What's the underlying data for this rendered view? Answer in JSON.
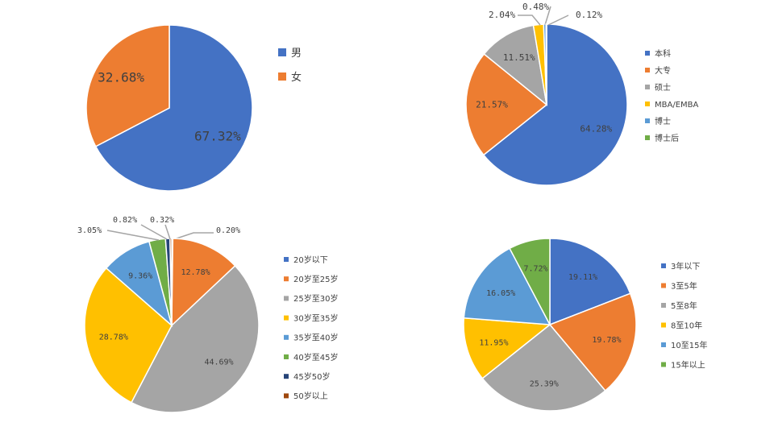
{
  "palette": [
    "#4472C4",
    "#ED7D31",
    "#A5A5A5",
    "#FFC000",
    "#5B9BD5",
    "#70AD47",
    "#264478",
    "#9E480E"
  ],
  "chart_data": [
    {
      "type": "pie",
      "title": "",
      "categories": [
        "男",
        "女"
      ],
      "values": [
        67.32,
        32.68
      ],
      "labels": [
        "67.32%",
        "32.68%"
      ],
      "legend": "right"
    },
    {
      "type": "pie",
      "title": "",
      "categories": [
        "本科",
        "大专",
        "硕士",
        "MBA/EMBA",
        "博士",
        "博士后"
      ],
      "values": [
        64.28,
        21.57,
        11.51,
        2.04,
        0.48,
        0.12
      ],
      "labels": [
        "64.28%",
        "21.57%",
        "11.51%",
        "2.04%",
        "0.48%",
        "0.12%"
      ],
      "legend": "right"
    },
    {
      "type": "pie",
      "title": "",
      "categories": [
        "20岁以下",
        "20岁至25岁",
        "25岁至30岁",
        "30岁至35岁",
        "35岁至40岁",
        "40岁至45岁",
        "45岁50岁",
        "50岁以上"
      ],
      "values": [
        0.2,
        12.78,
        44.69,
        28.78,
        9.36,
        3.05,
        0.82,
        0.32
      ],
      "labels": [
        "0.20%",
        "12.78%",
        "44.69%",
        "28.78%",
        "9.36%",
        "3.05%",
        "0.82%",
        "0.32%"
      ],
      "legend": "right"
    },
    {
      "type": "pie",
      "title": "",
      "categories": [
        "3年以下",
        "3至5年",
        "5至8年",
        "8至10年",
        "10至15年",
        "15年以上"
      ],
      "values": [
        19.11,
        19.78,
        25.39,
        11.95,
        16.05,
        7.72
      ],
      "labels": [
        "19.11%",
        "19.78%",
        "25.39%",
        "11.95%",
        "16.05%",
        "7.72%"
      ],
      "legend": "right"
    }
  ]
}
